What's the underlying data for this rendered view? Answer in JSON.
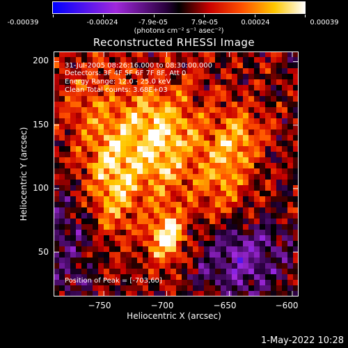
{
  "colorbar": {
    "tick_labels": [
      "-0.00039",
      "-0.00024",
      "-7.9e-05",
      "7.9e-05",
      "0.00024",
      "0.00039"
    ],
    "units": "(photons cm⁻² s⁻¹ asec⁻²)",
    "min": -0.00039,
    "max": 0.00039
  },
  "annotations": {
    "time_range": "31-Jul-2005 08:26:16.000 to 08:30:00.000",
    "detectors": "Detectors: 3F 4F 5F 6F 7F 8F, Att 0",
    "energy": "Energy Range: 12.0 - 25.0 keV",
    "clean": "Clean     Total counts: 3.68E+03",
    "peak": "Position of Peak = [-703,60]"
  },
  "datestamp": "1-May-2022 10:28",
  "colors": {
    "background": "#000000",
    "foreground": "#ffffff"
  },
  "chart_data": {
    "type": "heatmap",
    "title": "Reconstructed RHESSI Image",
    "xlabel": "Heliocentric X (arcsec)",
    "ylabel": "Heliocentric Y (arcsec)",
    "xlim": [
      -790,
      -595
    ],
    "ylim": [
      15,
      208
    ],
    "x_ticks": [
      -750,
      -700,
      -650,
      -600
    ],
    "y_ticks": [
      50,
      100,
      150,
      200
    ],
    "x_tick_labels": [
      "−750",
      "−700",
      "−650",
      "−600"
    ],
    "y_tick_labels": [
      "50",
      "100",
      "150",
      "200"
    ],
    "peak_position": [
      -703,
      60
    ],
    "bright_sources": [
      {
        "x": -705,
        "y": 138,
        "sx": 22,
        "sy": 30,
        "amp": 0.85
      },
      {
        "x": -700,
        "y": 62,
        "sx": 10,
        "sy": 14,
        "amp": 1.0
      },
      {
        "x": -742,
        "y": 100,
        "sx": 14,
        "sy": 30,
        "amp": 0.55
      },
      {
        "x": -655,
        "y": 110,
        "sx": 14,
        "sy": 28,
        "amp": 0.55
      },
      {
        "x": -640,
        "y": 145,
        "sx": 12,
        "sy": 16,
        "amp": 0.45
      },
      {
        "x": -760,
        "y": 150,
        "sx": 20,
        "sy": 40,
        "amp": 0.35
      }
    ],
    "dark_regions": [
      {
        "x": -640,
        "y": 45,
        "sx": 25,
        "sy": 22,
        "amp": -0.6
      },
      {
        "x": -780,
        "y": 60,
        "sx": 20,
        "sy": 40,
        "amp": -0.35
      }
    ],
    "grid": false
  }
}
